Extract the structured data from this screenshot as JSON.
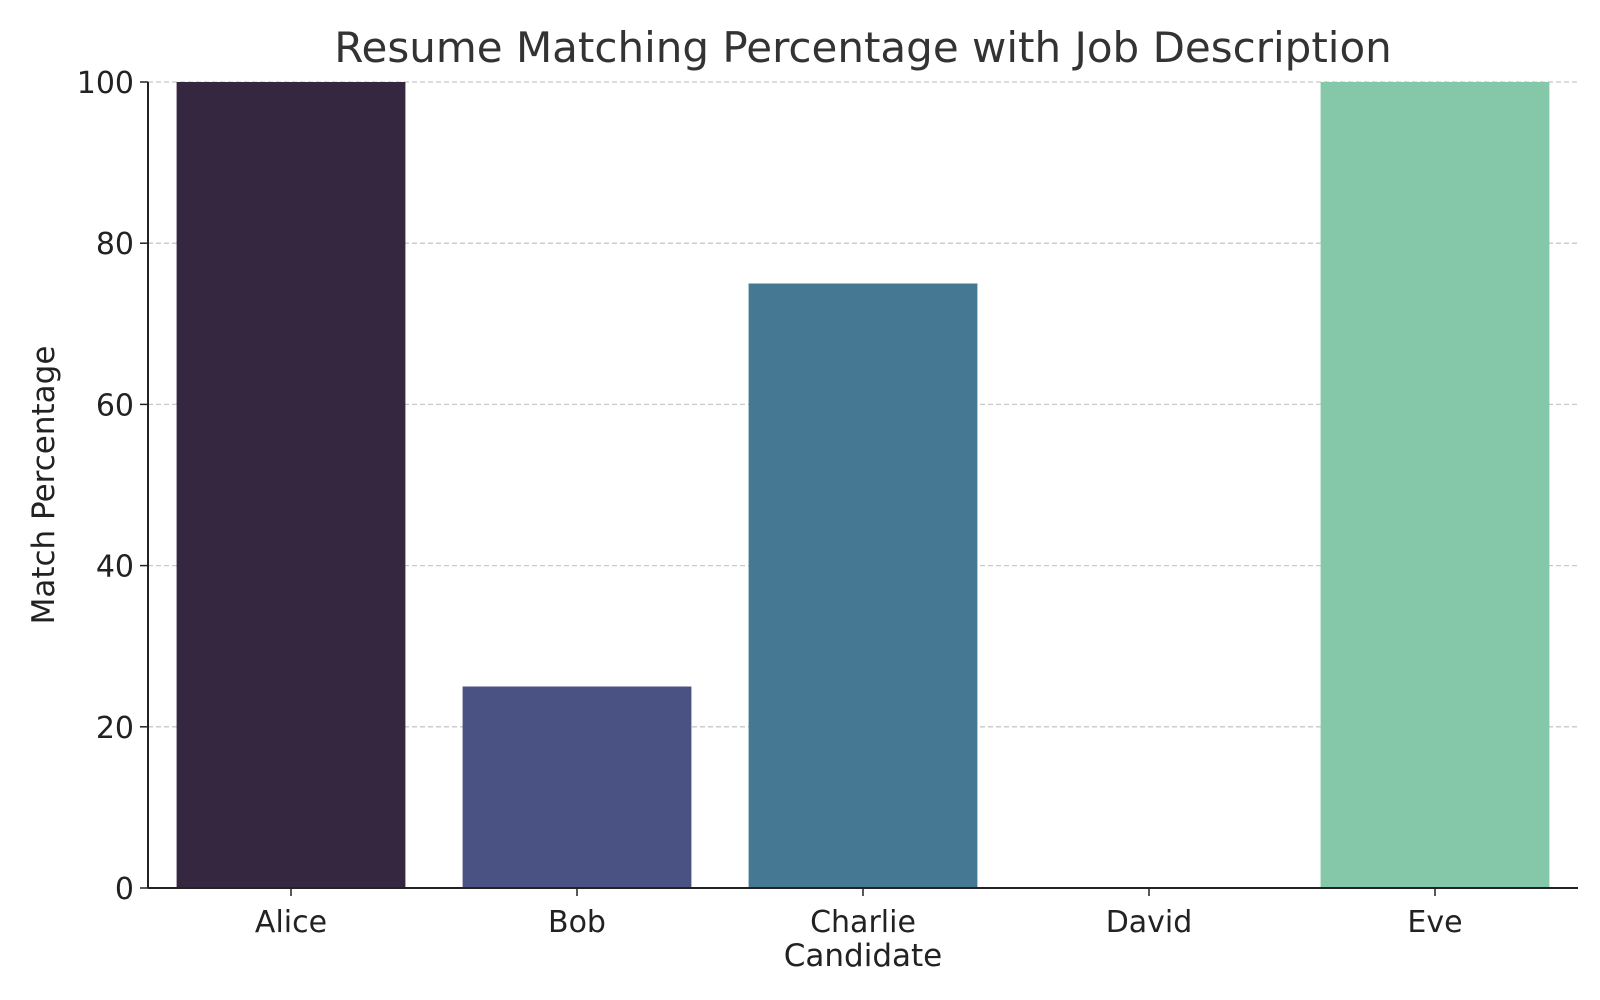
{
  "chart_data": {
    "type": "bar",
    "title": "Resume Matching Percentage with Job Description",
    "xlabel": "Candidate",
    "ylabel": "Match Percentage",
    "categories": [
      "Alice",
      "Bob",
      "Charlie",
      "David",
      "Eve"
    ],
    "values": [
      100,
      25,
      75,
      0,
      100
    ],
    "colors": [
      "#35273f",
      "#4a5283",
      "#457893",
      "#5da8a0",
      "#84c8a9"
    ],
    "ylim": [
      0,
      100
    ],
    "yticks": [
      0,
      20,
      40,
      60,
      80,
      100
    ],
    "ytick_labels": [
      "0",
      "20",
      "40",
      "60",
      "80",
      "100"
    ],
    "grid": "y-dashed",
    "legend": "none"
  }
}
